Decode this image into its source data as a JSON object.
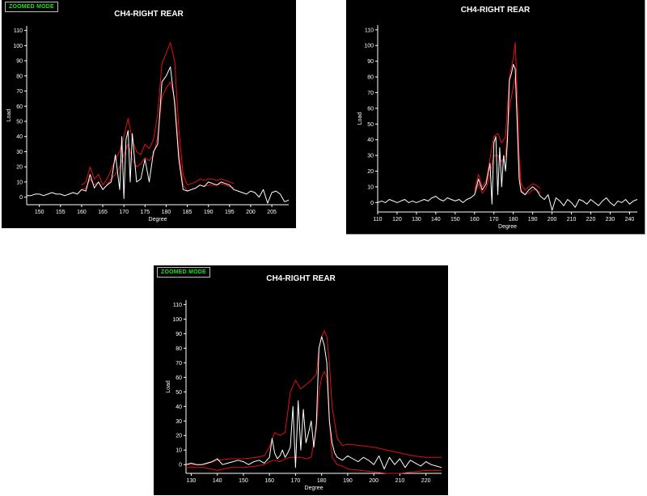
{
  "colors": {
    "background": "#000000",
    "axis": "#ffffff",
    "trace": "#ffffff",
    "limit": "#e01010",
    "badge_text": "#19e619"
  },
  "chart_data": [
    {
      "type": "line",
      "mode_badge": "ZOOMED MODE",
      "title": "CH4-RIGHT REAR",
      "xlabel": "Degree",
      "ylabel": "Load",
      "xlim": [
        147,
        209
      ],
      "ylim": [
        -5,
        113
      ],
      "xticks": [
        150,
        155,
        160,
        165,
        170,
        175,
        180,
        185,
        190,
        195,
        200,
        205
      ],
      "yticks": [
        0,
        10,
        20,
        30,
        40,
        50,
        60,
        70,
        80,
        90,
        100,
        110
      ],
      "grid": false,
      "series": [
        {
          "role": "measured",
          "x": [
            147,
            148,
            149,
            150,
            151,
            152,
            153,
            154,
            155,
            156,
            157,
            158,
            159,
            160,
            161,
            162,
            163,
            164,
            165,
            166,
            167,
            168,
            169,
            169.5,
            170,
            170.5,
            171,
            171.5,
            172,
            173,
            174,
            175,
            176,
            177,
            178,
            179,
            180,
            181,
            182,
            183,
            184,
            185,
            186,
            187,
            188,
            189,
            190,
            191,
            192,
            193,
            194,
            195,
            196,
            197,
            198,
            199,
            200,
            201,
            202,
            203,
            204,
            205,
            206,
            207,
            208,
            209
          ],
          "y": [
            1,
            1,
            2,
            2,
            1,
            2,
            3,
            2,
            2,
            1,
            2,
            3,
            2,
            5,
            4,
            15,
            6,
            10,
            5,
            8,
            10,
            28,
            5,
            40,
            -1,
            38,
            44,
            10,
            42,
            10,
            12,
            25,
            10,
            30,
            35,
            76,
            80,
            86,
            62,
            25,
            5,
            4,
            5,
            6,
            8,
            7,
            10,
            9,
            8,
            10,
            9,
            8,
            5,
            4,
            3,
            2,
            4,
            3,
            0,
            5,
            -4,
            3,
            4,
            2,
            -3,
            -2
          ]
        },
        {
          "role": "upper-limit",
          "x": [
            160,
            161,
            162,
            163,
            164,
            165,
            166,
            167,
            168,
            169,
            170,
            171,
            172,
            173,
            174,
            175,
            176,
            177,
            178,
            179,
            180,
            181,
            182,
            183,
            184,
            185,
            186,
            187,
            188,
            189,
            190,
            191,
            192,
            193,
            194,
            195,
            196
          ],
          "y": [
            8,
            10,
            20,
            12,
            15,
            8,
            12,
            18,
            25,
            30,
            40,
            52,
            38,
            30,
            28,
            35,
            32,
            38,
            55,
            88,
            95,
            102,
            90,
            45,
            15,
            8,
            9,
            10,
            12,
            11,
            12,
            12,
            11,
            12,
            11,
            10,
            9
          ]
        },
        {
          "role": "lower-limit",
          "x": [
            160,
            161,
            162,
            163,
            164,
            165,
            166,
            167,
            168,
            169,
            170,
            171,
            172,
            173,
            174,
            175,
            176,
            177,
            178,
            179,
            180,
            181,
            182,
            183,
            184,
            185,
            186,
            187,
            188,
            189,
            190,
            191,
            192,
            193,
            194,
            195,
            196
          ],
          "y": [
            5,
            6,
            12,
            8,
            10,
            5,
            8,
            12,
            15,
            20,
            28,
            35,
            25,
            20,
            22,
            26,
            24,
            28,
            40,
            66,
            72,
            76,
            65,
            30,
            8,
            4,
            5,
            6,
            8,
            7,
            8,
            8,
            8,
            9,
            8,
            7,
            6
          ]
        }
      ]
    },
    {
      "type": "line",
      "title": "CH4-RIGHT REAR",
      "xlabel": "Degree",
      "ylabel": "Load",
      "xlim": [
        110,
        244
      ],
      "ylim": [
        -6,
        113
      ],
      "xticks": [
        110,
        120,
        130,
        140,
        150,
        160,
        170,
        180,
        190,
        200,
        210,
        220,
        230,
        240
      ],
      "yticks": [
        0,
        10,
        20,
        30,
        40,
        50,
        60,
        70,
        80,
        90,
        100,
        110
      ],
      "grid": false,
      "series": [
        {
          "role": "measured",
          "x": [
            110,
            112,
            114,
            116,
            118,
            120,
            122,
            124,
            126,
            128,
            130,
            132,
            134,
            136,
            138,
            140,
            142,
            144,
            146,
            148,
            150,
            152,
            154,
            156,
            158,
            160,
            162,
            164,
            166,
            168,
            169,
            170,
            171,
            172,
            173,
            174,
            175,
            176,
            177,
            178,
            179,
            180,
            181,
            182,
            183,
            184,
            186,
            188,
            190,
            192,
            194,
            196,
            198,
            200,
            202,
            204,
            206,
            208,
            210,
            212,
            214,
            216,
            218,
            220,
            222,
            224,
            226,
            228,
            230,
            232,
            234,
            236,
            238,
            240,
            242,
            244
          ],
          "y": [
            0,
            1,
            0,
            2,
            1,
            0,
            1,
            2,
            0,
            1,
            0,
            1,
            2,
            1,
            3,
            4,
            2,
            1,
            3,
            2,
            1,
            2,
            0,
            2,
            3,
            5,
            15,
            8,
            12,
            25,
            -1,
            38,
            42,
            5,
            35,
            10,
            30,
            20,
            40,
            78,
            82,
            88,
            85,
            50,
            15,
            7,
            5,
            8,
            10,
            8,
            4,
            2,
            5,
            -5,
            3,
            1,
            -2,
            2,
            0,
            -3,
            2,
            1,
            -1,
            2,
            0,
            -2,
            1,
            3,
            0,
            -2,
            1,
            0,
            2,
            -1,
            1,
            2
          ]
        },
        {
          "role": "upper-limit",
          "x": [
            160,
            162,
            164,
            166,
            168,
            170,
            172,
            174,
            176,
            178,
            180,
            181,
            182,
            183,
            184,
            186,
            188,
            190,
            192,
            194
          ],
          "y": [
            8,
            18,
            10,
            14,
            28,
            42,
            44,
            38,
            42,
            80,
            92,
            102,
            70,
            30,
            12,
            8,
            10,
            12,
            11,
            9
          ]
        },
        {
          "role": "lower-limit",
          "x": [
            160,
            162,
            164,
            166,
            168,
            170,
            172,
            174,
            176,
            178,
            180,
            181,
            182,
            183,
            184,
            186,
            188,
            190,
            192,
            194
          ],
          "y": [
            5,
            12,
            6,
            9,
            18,
            30,
            30,
            26,
            30,
            60,
            74,
            80,
            55,
            22,
            8,
            5,
            6,
            8,
            8,
            6
          ]
        }
      ]
    },
    {
      "type": "line",
      "mode_badge": "ZOOMED MODE",
      "title": "CH4-RIGHT REAR",
      "xlabel": "Degree",
      "ylabel": "Load",
      "xlim": [
        128,
        226
      ],
      "ylim": [
        -6,
        113
      ],
      "xticks": [
        130,
        140,
        150,
        160,
        170,
        180,
        190,
        200,
        210,
        220
      ],
      "yticks": [
        0,
        10,
        20,
        30,
        40,
        50,
        60,
        70,
        80,
        90,
        100,
        110
      ],
      "grid": false,
      "series": [
        {
          "role": "measured",
          "x": [
            128,
            130,
            132,
            134,
            136,
            138,
            140,
            142,
            144,
            146,
            148,
            150,
            152,
            154,
            156,
            158,
            160,
            161,
            162,
            163,
            164,
            165,
            166,
            167,
            168,
            169,
            170,
            171,
            172,
            173,
            174,
            175,
            176,
            177,
            178,
            179,
            180,
            181,
            182,
            183,
            184,
            185,
            186,
            188,
            190,
            192,
            194,
            196,
            198,
            200,
            202,
            204,
            206,
            208,
            210,
            212,
            214,
            216,
            218,
            220,
            222,
            224,
            226
          ],
          "y": [
            0,
            1,
            0,
            0,
            1,
            2,
            4,
            0,
            1,
            2,
            3,
            2,
            0,
            2,
            3,
            1,
            5,
            18,
            8,
            4,
            6,
            10,
            5,
            8,
            12,
            40,
            -2,
            44,
            10,
            38,
            15,
            22,
            30,
            12,
            28,
            80,
            88,
            82,
            70,
            30,
            15,
            8,
            5,
            3,
            6,
            4,
            2,
            5,
            3,
            0,
            6,
            -3,
            5,
            0,
            4,
            -2,
            3,
            1,
            -1,
            2,
            0,
            -1,
            -2
          ]
        },
        {
          "role": "upper-limit",
          "x": [
            128,
            135,
            140,
            145,
            150,
            155,
            158,
            160,
            162,
            164,
            166,
            168,
            170,
            172,
            174,
            176,
            178,
            179,
            180,
            181,
            182,
            183,
            184,
            186,
            188,
            190,
            195,
            200,
            205,
            210,
            215,
            220,
            226
          ],
          "y": [
            0,
            0,
            3,
            4,
            4,
            5,
            6,
            12,
            22,
            20,
            22,
            50,
            58,
            52,
            55,
            58,
            62,
            80,
            88,
            92,
            88,
            70,
            40,
            18,
            13,
            14,
            13,
            12,
            10,
            8,
            6,
            5,
            5
          ]
        },
        {
          "role": "lower-limit",
          "x": [
            128,
            135,
            140,
            145,
            150,
            155,
            158,
            160,
            162,
            164,
            166,
            168,
            170,
            172,
            174,
            176,
            178,
            179,
            180,
            181,
            182,
            183,
            184,
            186,
            188,
            190,
            195,
            200,
            205,
            210,
            215,
            220,
            226
          ],
          "y": [
            -2,
            -2,
            -4,
            -2,
            -2,
            -1,
            0,
            2,
            3,
            2,
            4,
            5,
            5,
            5,
            4,
            5,
            25,
            50,
            60,
            64,
            60,
            30,
            5,
            0,
            -1,
            -3,
            -4,
            -5,
            -6,
            -6,
            -5,
            -4,
            -4
          ]
        }
      ]
    }
  ]
}
